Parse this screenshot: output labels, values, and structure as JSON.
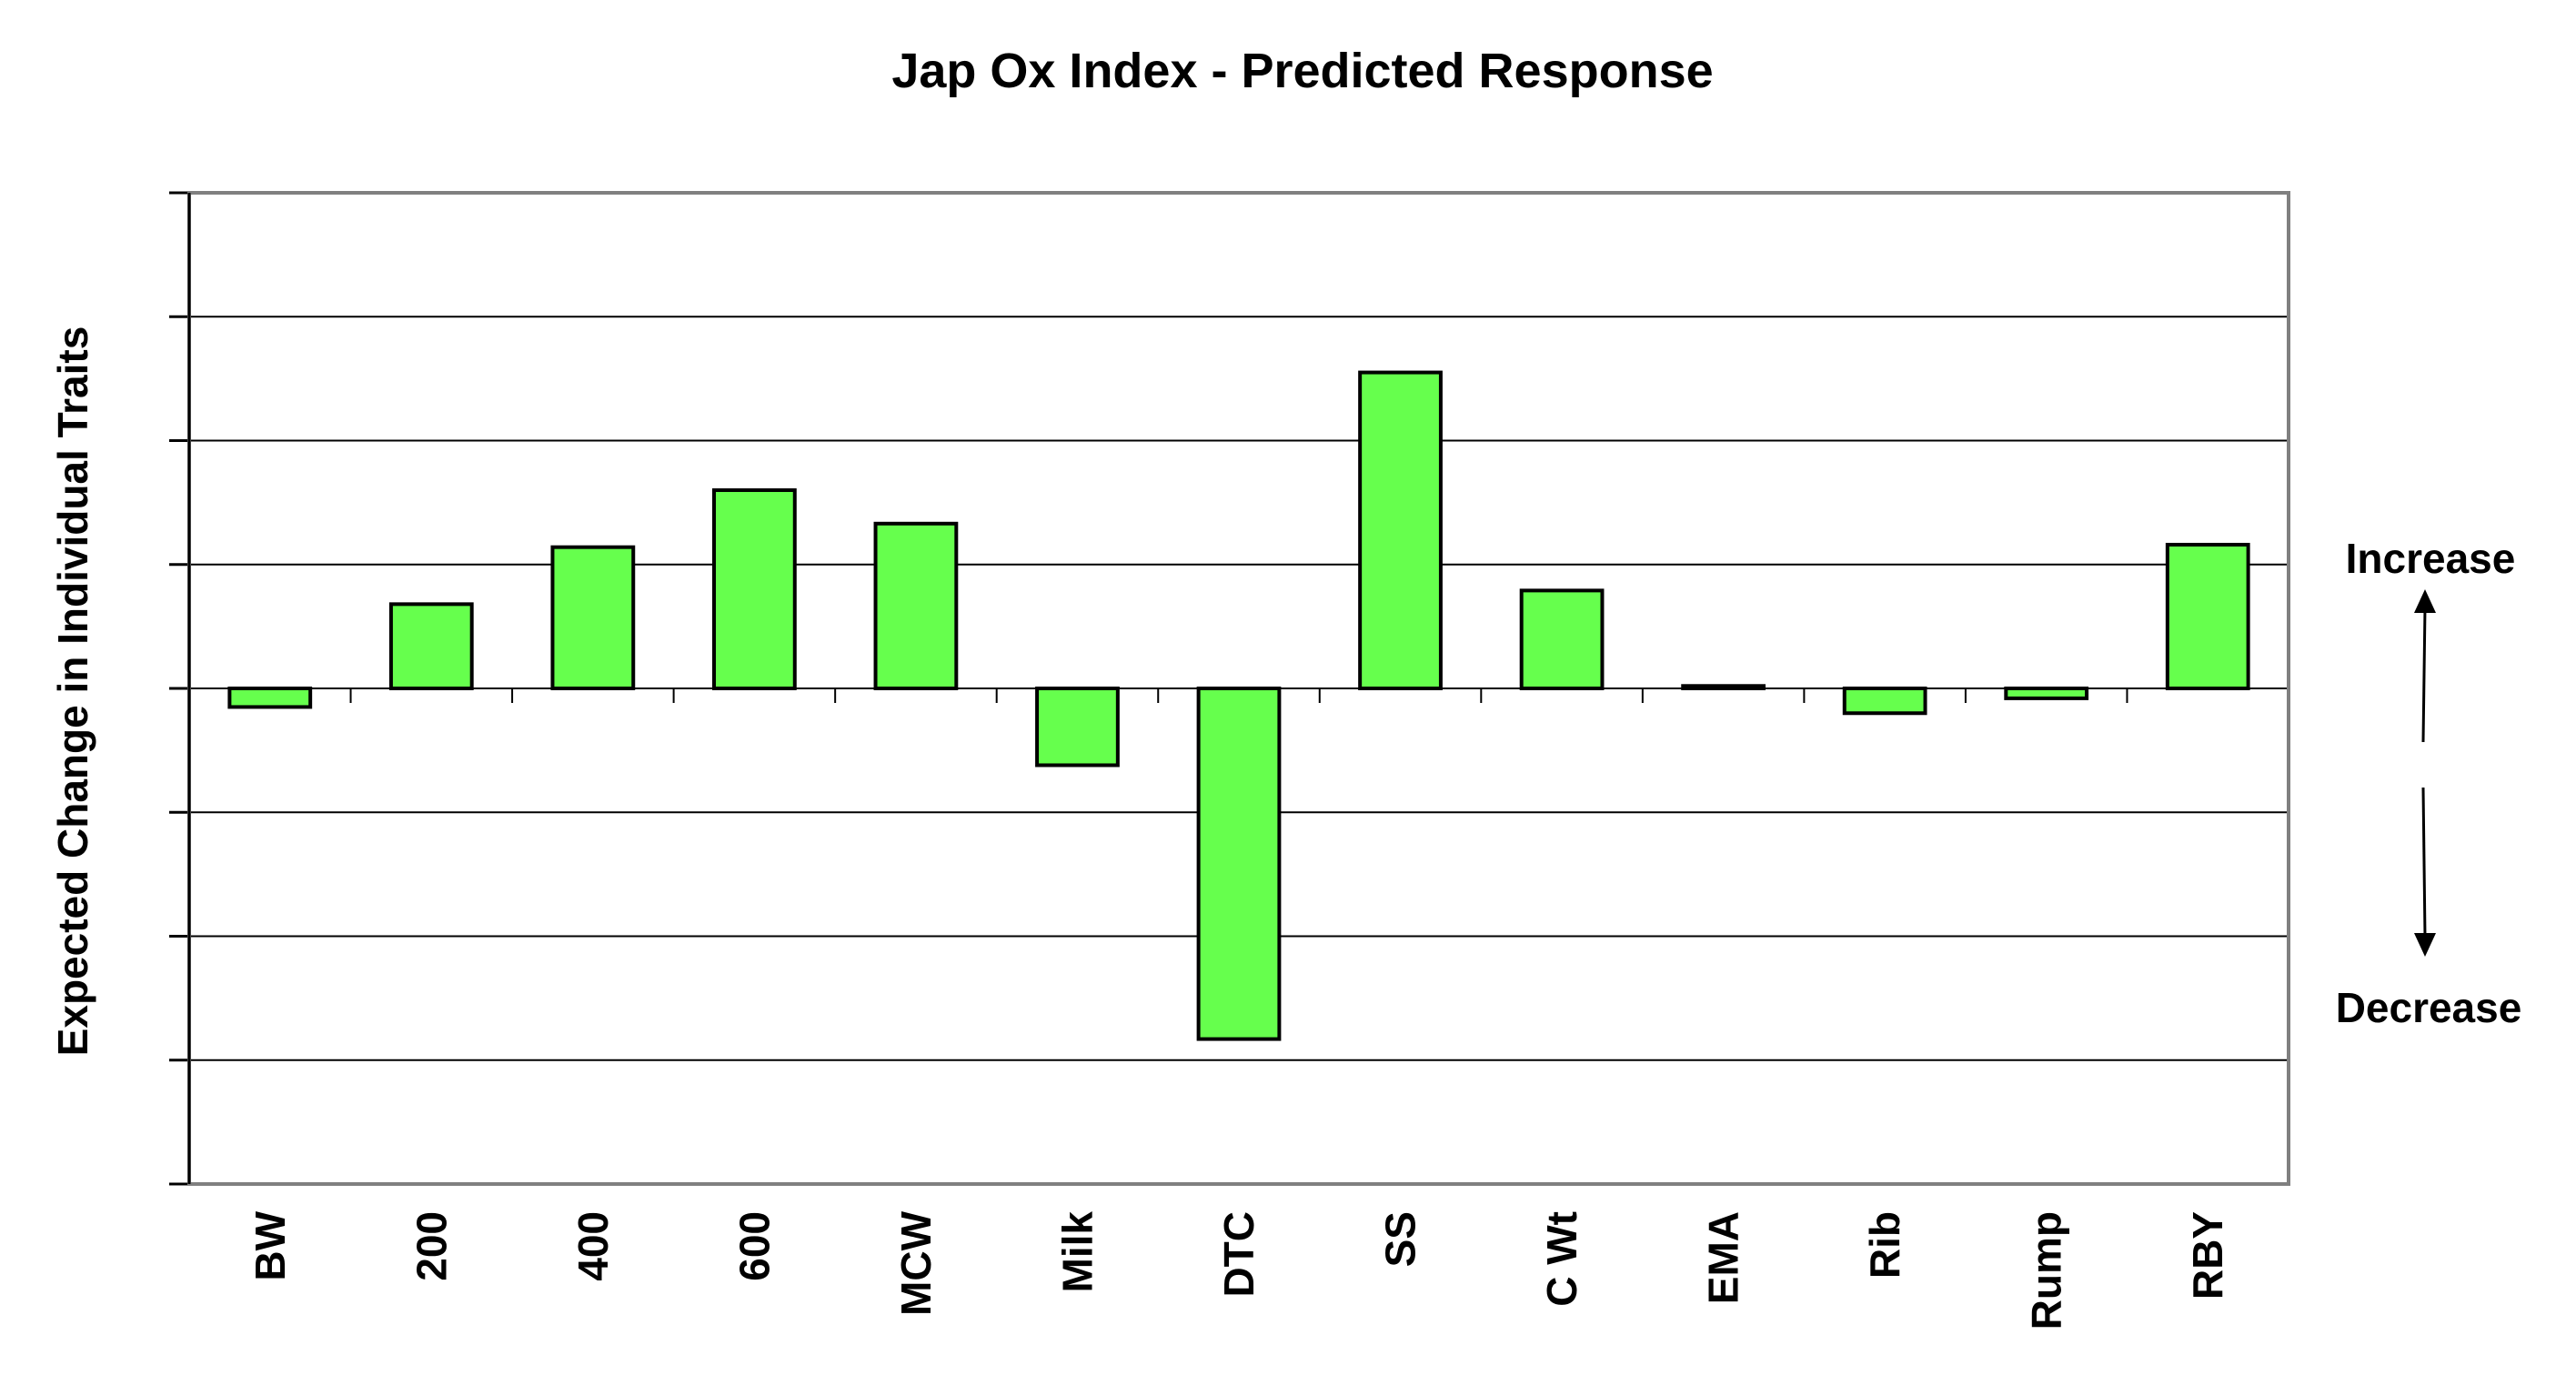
{
  "chart_data": {
    "type": "bar",
    "title": "Jap Ox Index - Predicted Response",
    "xlabel": "",
    "ylabel": "Expected Change in Individual Traits",
    "categories": [
      "BW",
      "200",
      "400",
      "600",
      "MCW",
      "Milk",
      "DTC",
      "SS",
      "C Wt",
      "EMA",
      "Rib",
      "Rump",
      "RBY"
    ],
    "values": [
      -0.15,
      0.68,
      1.14,
      1.6,
      1.33,
      -0.62,
      -2.83,
      2.55,
      0.79,
      0.02,
      -0.2,
      -0.08,
      1.16
    ],
    "ylim": [
      -4,
      4
    ],
    "y_tick_step": 1,
    "y_tick_labels_shown": false,
    "grid": true,
    "legend": "none",
    "annotations": {
      "increase": "Increase",
      "decrease": "Decrease"
    },
    "colors": {
      "bar_fill": "#66ff4d",
      "bar_stroke": "#000000",
      "grid": "#000000",
      "plot_border": "#808080"
    }
  }
}
